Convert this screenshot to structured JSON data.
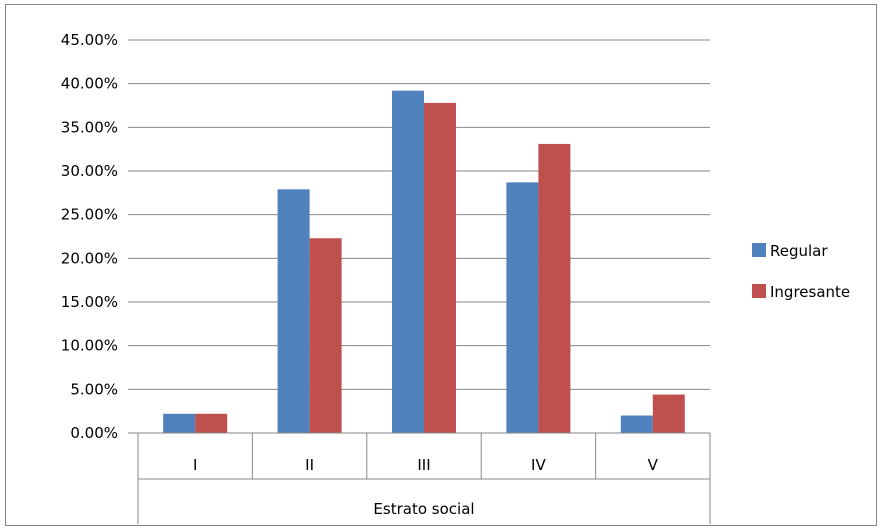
{
  "chart_data": {
    "type": "bar",
    "categories": [
      "I",
      "II",
      "III",
      "IV",
      "V"
    ],
    "series": [
      {
        "name": "Regular",
        "color": "#4f81bd",
        "values": [
          2.2,
          27.9,
          39.2,
          28.7,
          2.0
        ]
      },
      {
        "name": "Ingresante",
        "color": "#c0504d",
        "values": [
          2.2,
          22.3,
          37.8,
          33.1,
          4.4
        ]
      }
    ],
    "value_unit": "percent",
    "title": "",
    "xlabel": "Estrato social",
    "ylabel": "",
    "ylim": [
      0,
      45
    ],
    "yticks": [
      "0.00%",
      "5.00%",
      "10.00%",
      "15.00%",
      "20.00%",
      "25.00%",
      "30.00%",
      "35.00%",
      "40.00%",
      "45.00%"
    ],
    "grid": true,
    "legend_position": "right"
  }
}
